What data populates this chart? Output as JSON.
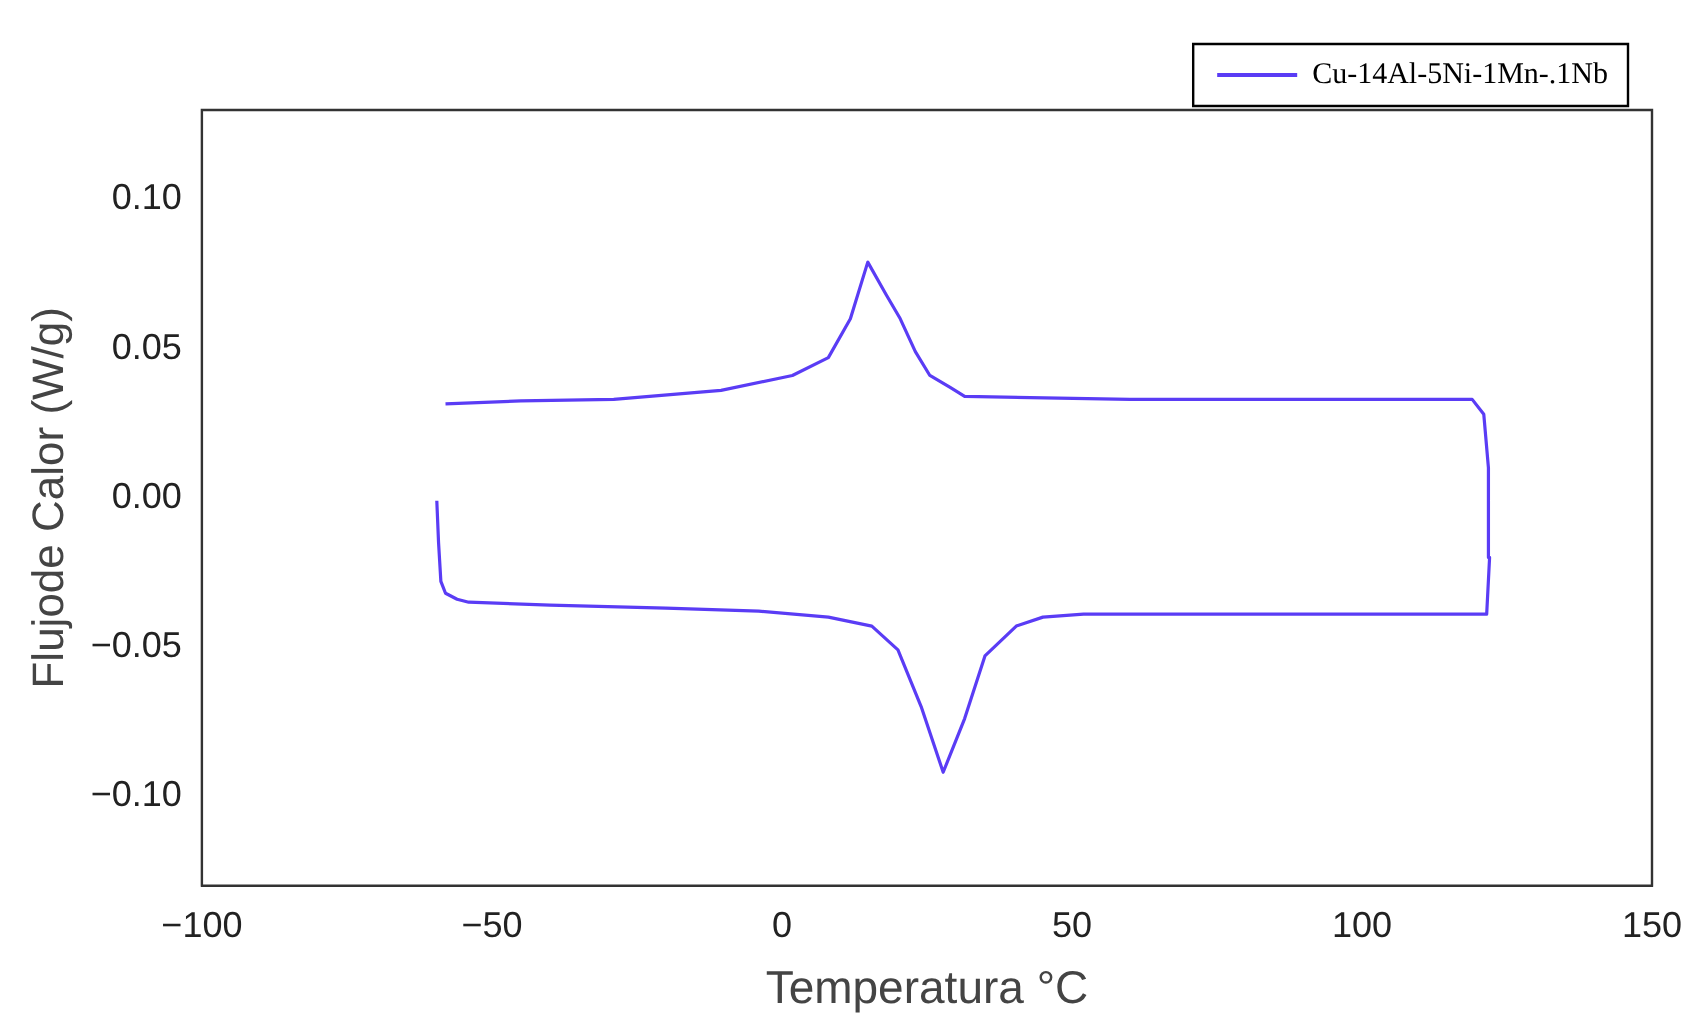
{
  "chart_data": {
    "type": "line",
    "xlabel": "Temperatura °C",
    "ylabel": "Flujode Calor (W/g)",
    "xlim": [
      -100,
      150
    ],
    "xticks": [
      -100,
      -50,
      0,
      50,
      100,
      150
    ],
    "ylim": [
      -0.13,
      0.13
    ],
    "yticks": [
      {
        "value": -0.1,
        "label": "−0.10"
      },
      -0.05,
      {
        "value": 0,
        "label": "0.00"
      },
      0.05,
      {
        "value": 0.1,
        "label": "0.10"
      }
    ],
    "grid": false,
    "legend": "top right",
    "marker": "none",
    "line_style": "solid",
    "series": [
      {
        "name": "Cu-14Al-5Ni-1Mn-.1Nb",
        "color": "#5a3cf5",
        "x": [
          -59.5,
          -59.2,
          -58.8,
          -58,
          -56,
          -54,
          -40,
          -20,
          -4,
          8,
          15.5,
          20,
          24,
          27.8,
          31.5,
          35,
          40.4,
          45,
          52,
          80,
          105,
          121.5,
          122,
          121.8,
          121,
          119,
          100,
          60,
          31.5,
          29,
          25.5,
          23,
          20.4,
          18,
          14.8,
          11.8,
          8,
          1.8,
          -10.5,
          -29,
          -45,
          -58
        ],
        "values": [
          -0.001,
          -0.015,
          -0.028,
          -0.032,
          -0.034,
          -0.035,
          -0.036,
          -0.037,
          -0.038,
          -0.04,
          -0.043,
          -0.051,
          -0.07,
          -0.092,
          -0.074,
          -0.053,
          -0.043,
          -0.04,
          -0.039,
          -0.039,
          -0.039,
          -0.039,
          -0.02,
          0.01,
          0.028,
          0.033,
          0.033,
          0.033,
          0.034,
          0.037,
          0.041,
          0.049,
          0.06,
          0.068,
          0.079,
          0.06,
          0.047,
          0.041,
          0.036,
          0.033,
          0.0325,
          0.0315
        ]
      }
    ]
  }
}
